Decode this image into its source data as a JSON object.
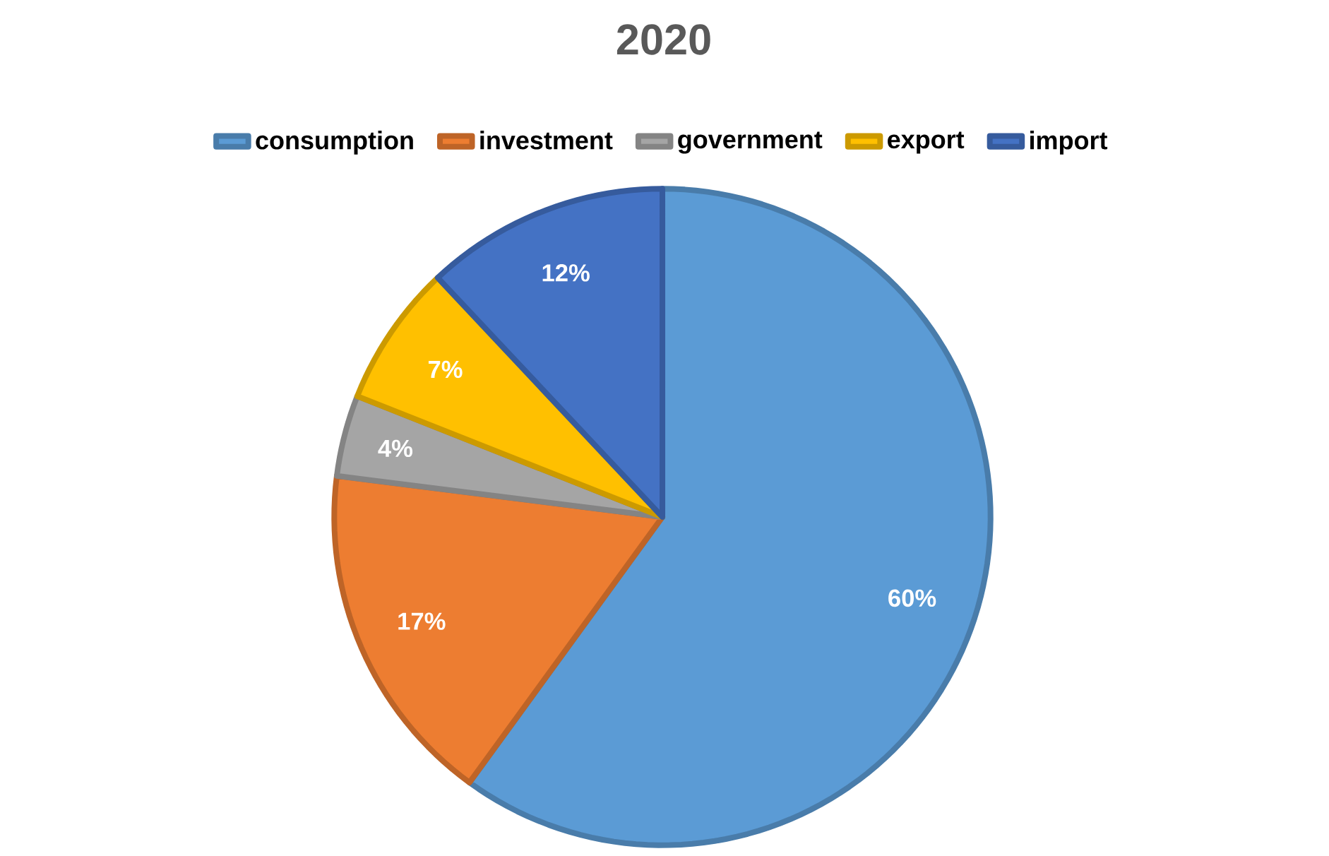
{
  "chart_data": {
    "type": "pie",
    "title": "2020",
    "categories": [
      "consumption",
      "investment",
      "government",
      "export",
      "import"
    ],
    "values": [
      60,
      17,
      4,
      7,
      12
    ],
    "value_labels": [
      "60%",
      "17%",
      "4%",
      "7%",
      "12%"
    ],
    "colors": [
      "#5b9bd5",
      "#ed7d31",
      "#a5a5a5",
      "#ffc000",
      "#4472c4"
    ],
    "legend": "top"
  }
}
